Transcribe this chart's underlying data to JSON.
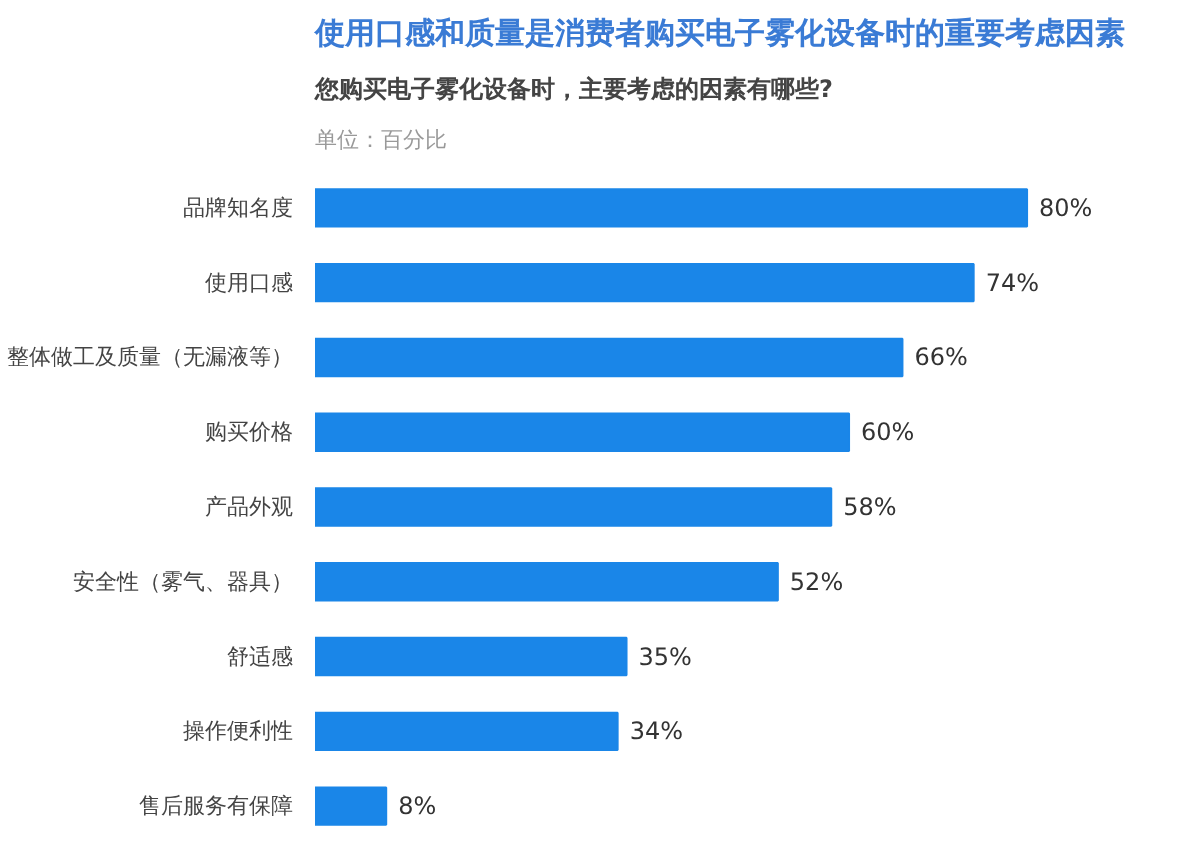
{
  "chart_data": {
    "type": "bar",
    "orientation": "horizontal",
    "title": "使用口感和质量是消费者购买电子雾化设备时的重要考虑因素",
    "subtitle": "您购买电子雾化设备时，主要考虑的因素有哪些?",
    "annotations": [
      "单位：百分比"
    ],
    "categories": [
      "品牌知名度",
      "使用口感",
      "整体做工及质量（无漏液等）",
      "购买价格",
      "产品外观",
      "安全性（雾气、器具）",
      "舒适感",
      "操作便利性",
      "售后服务有保障"
    ],
    "values": [
      80,
      74,
      66,
      60,
      58,
      52,
      35,
      34,
      8
    ],
    "value_labels": [
      "80%",
      "74%",
      "66%",
      "60%",
      "58%",
      "52%",
      "35%",
      "34%",
      "8%"
    ],
    "color": "#1a86e8",
    "xlim": [
      0,
      80
    ],
    "tick_labels": "y",
    "grid": false
  }
}
